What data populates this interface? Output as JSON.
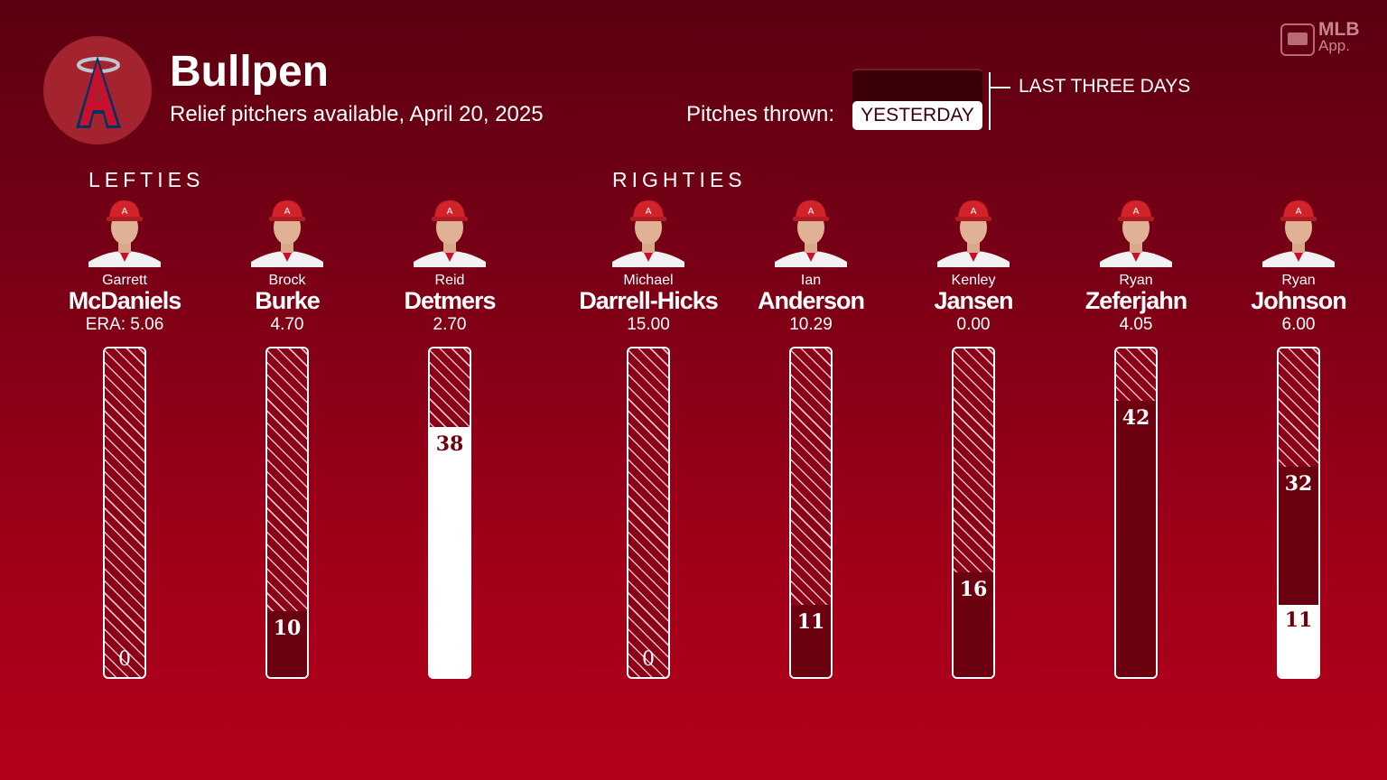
{
  "header": {
    "title": "Bullpen",
    "subtitle": "Relief pitchers available, April 20, 2025",
    "pitches_label": "Pitches thrown:",
    "legend_yesterday": "YESTERDAY",
    "legend_three_days": "LAST THREE DAYS"
  },
  "brand": {
    "mlb": "MLB",
    "app": "App."
  },
  "groups": {
    "lefties": "LEFTIES",
    "righties": "RIGHTIES"
  },
  "chart_data": {
    "type": "bar",
    "categories": [
      "McDaniels",
      "Burke",
      "Detmers",
      "Darrell-Hicks",
      "Anderson",
      "Jansen",
      "Zeferjahn",
      "Johnson"
    ],
    "series": [
      {
        "name": "YESTERDAY",
        "values": [
          0,
          0,
          38,
          0,
          0,
          0,
          0,
          11
        ]
      },
      {
        "name": "LAST THREE DAYS",
        "values": [
          0,
          10,
          38,
          0,
          11,
          16,
          42,
          32
        ]
      }
    ],
    "ylim": [
      0,
      50
    ]
  },
  "pitchers": [
    {
      "first": "Garrett",
      "last": "McDaniels",
      "era": "ERA: 5.06",
      "group": "lefties",
      "yesterday": 0,
      "three_days": 0,
      "label": "0"
    },
    {
      "first": "Brock",
      "last": "Burke",
      "era": "4.70",
      "group": "lefties",
      "yesterday": 0,
      "three_days": 10,
      "label": "10"
    },
    {
      "first": "Reid",
      "last": "Detmers",
      "era": "2.70",
      "group": "lefties",
      "yesterday": 38,
      "three_days": 38,
      "label": "38"
    },
    {
      "first": "Michael",
      "last": "Darrell-Hicks",
      "era": "15.00",
      "group": "righties",
      "yesterday": 0,
      "three_days": 0,
      "label": "0"
    },
    {
      "first": "Ian",
      "last": "Anderson",
      "era": "10.29",
      "group": "righties",
      "yesterday": 0,
      "three_days": 11,
      "label": "11"
    },
    {
      "first": "Kenley",
      "last": "Jansen",
      "era": "0.00",
      "group": "righties",
      "yesterday": 0,
      "three_days": 16,
      "label": "16"
    },
    {
      "first": "Ryan",
      "last": "Zeferjahn",
      "era": "4.05",
      "group": "righties",
      "yesterday": 0,
      "three_days": 42,
      "label": "42"
    },
    {
      "first": "Ryan",
      "last": "Johnson",
      "era": "6.00",
      "group": "righties",
      "yesterday": 11,
      "three_days": 32,
      "label3": "32",
      "label1": "11"
    }
  ],
  "colors": {
    "dark": "#6b000f",
    "light": "#ffffff",
    "logo_red": "#c8102e",
    "logo_navy": "#003263"
  }
}
